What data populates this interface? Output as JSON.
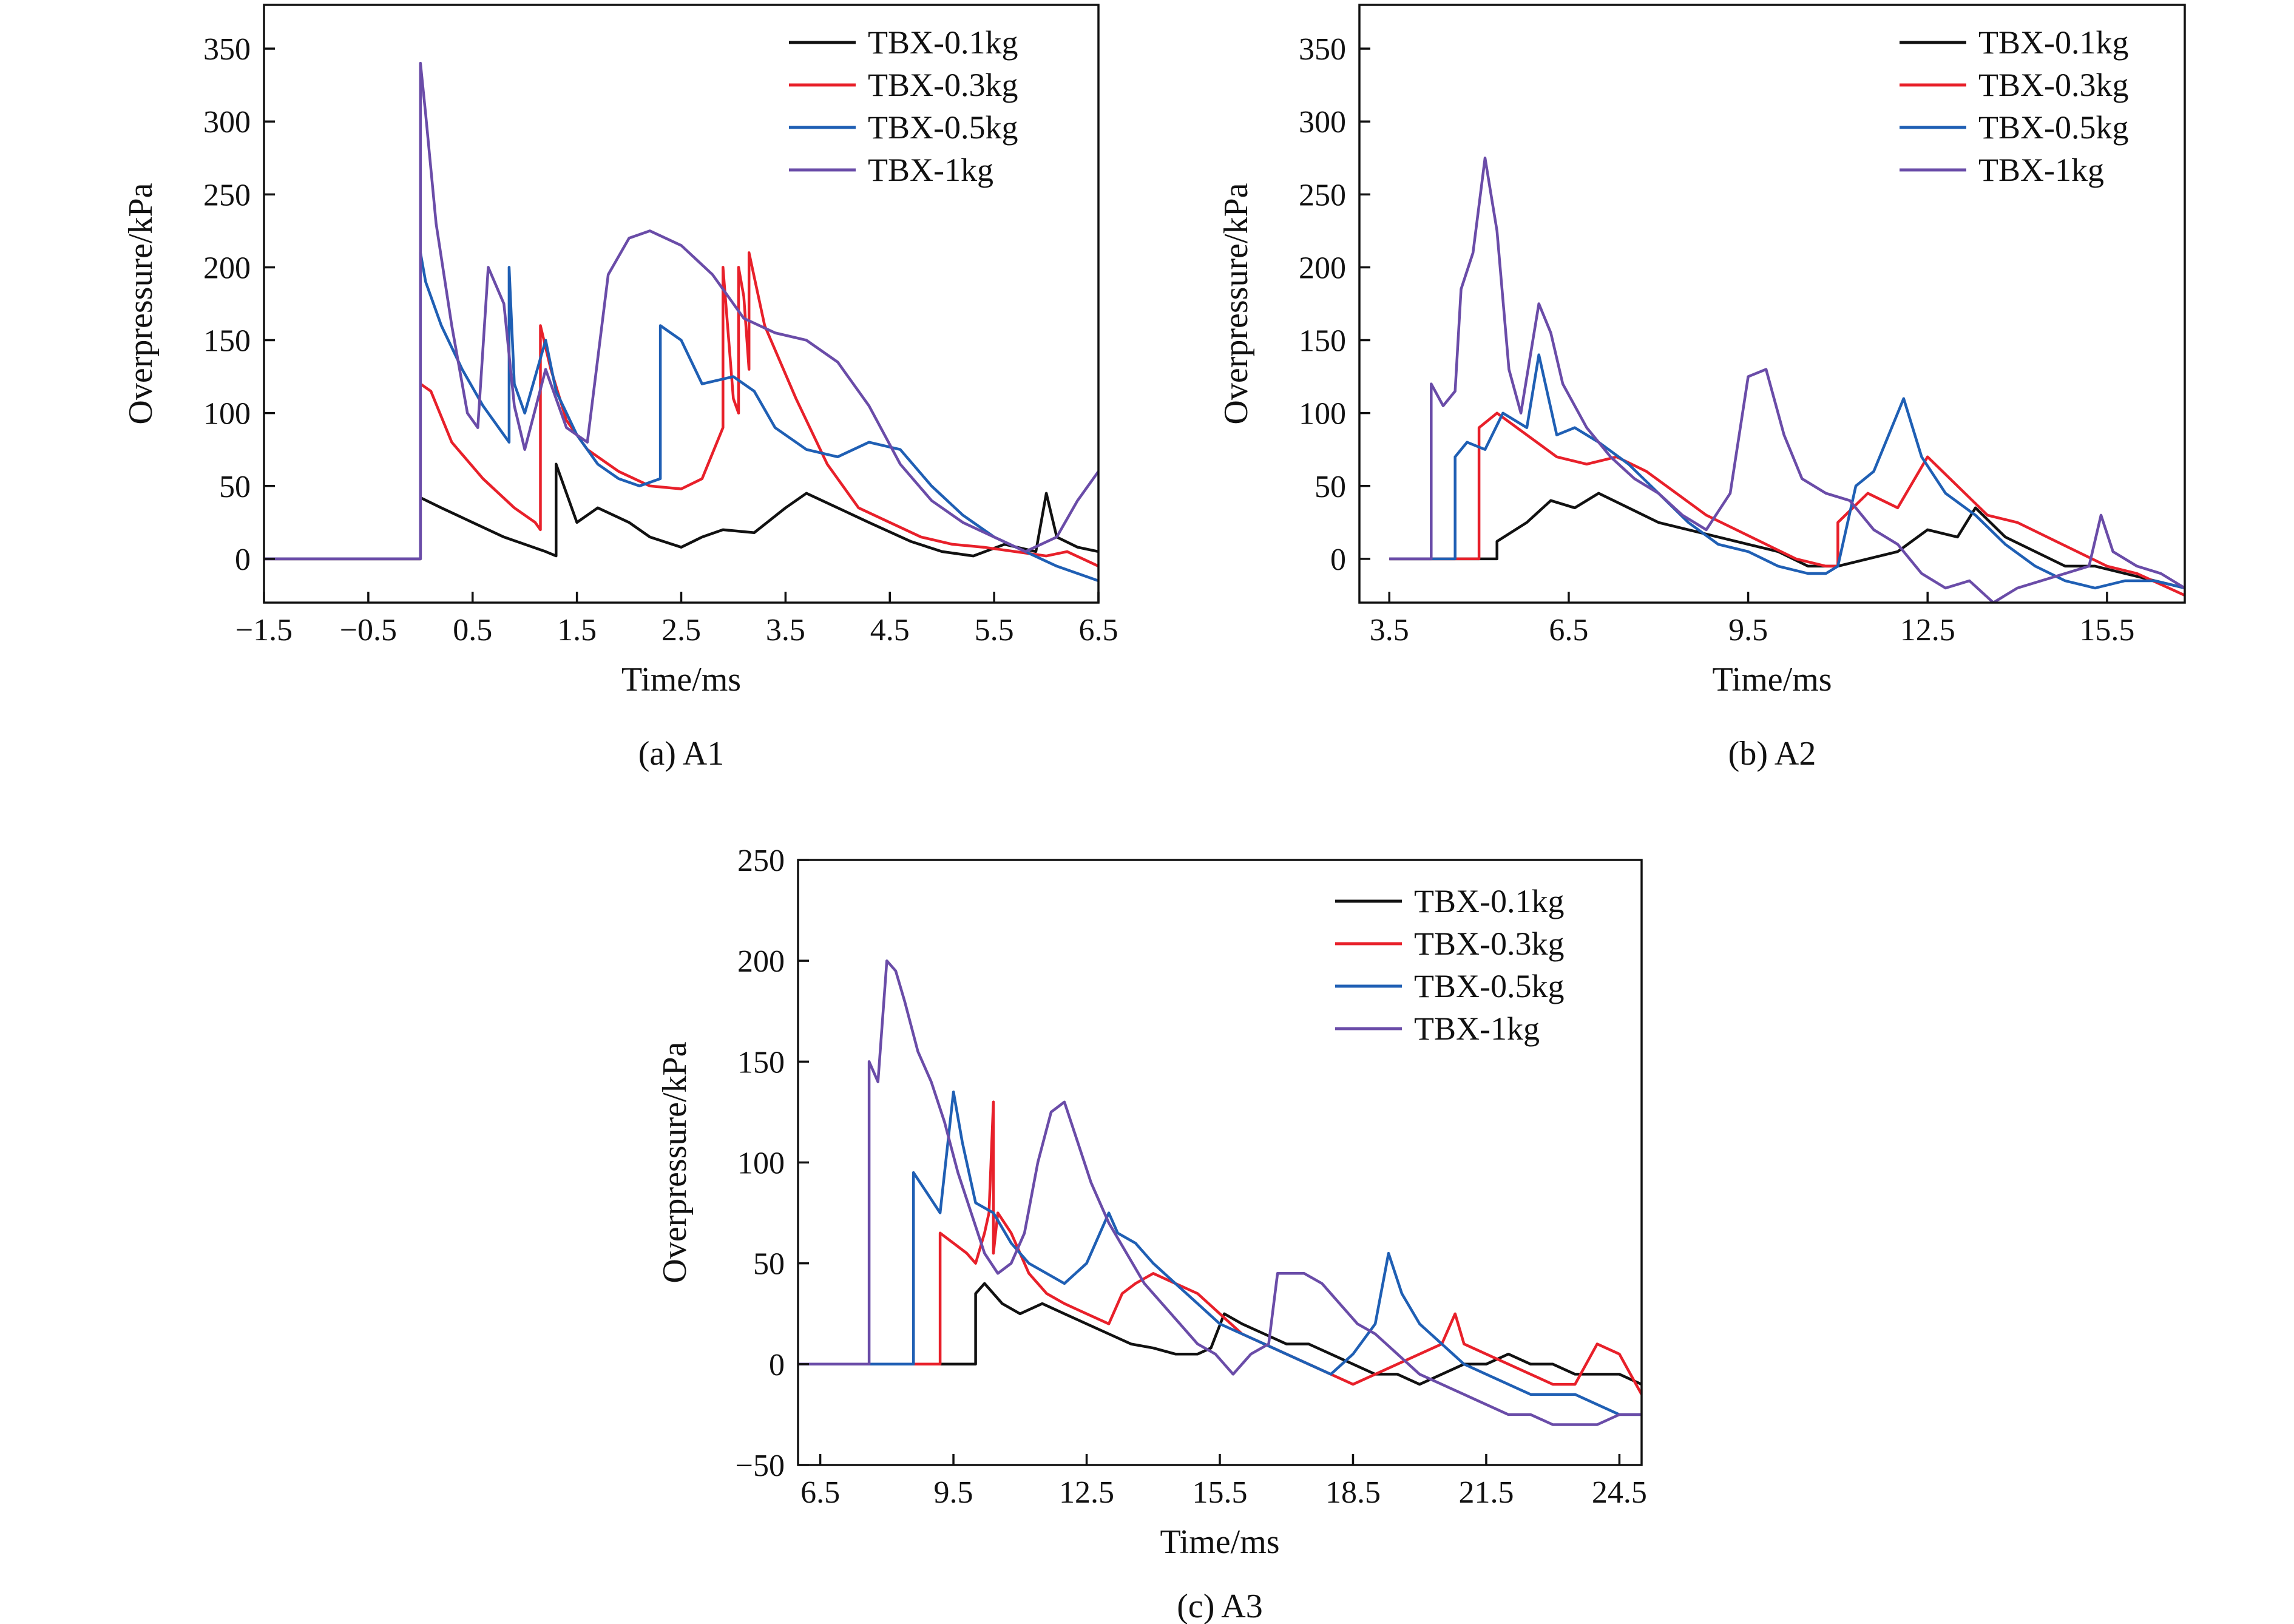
{
  "colors": {
    "TBX-0.1kg": "#111111",
    "TBX-0.3kg": "#e8202a",
    "TBX-0.5kg": "#1f5fb4",
    "TBX-1kg": "#6a4ca8"
  },
  "chart_data": [
    {
      "id": "a1",
      "type": "line",
      "caption": "(a) A1",
      "xlabel": "Time/ms",
      "ylabel": "Overpressure/kPa",
      "xlim": [
        -1.5,
        6.5
      ],
      "ylim": [
        -30,
        380
      ],
      "xticks": [
        -1.5,
        -0.5,
        0.5,
        1.5,
        2.5,
        3.5,
        4.5,
        5.5,
        6.5
      ],
      "xtick_labels": [
        "−1.5",
        "−0.5",
        "0.5",
        "1.5",
        "2.5",
        "3.5",
        "4.5",
        "5.5",
        "6.5"
      ],
      "yticks": [
        0,
        50,
        100,
        150,
        200,
        250,
        300,
        350
      ],
      "ytick_labels": [
        "0",
        "50",
        "100",
        "150",
        "200",
        "250",
        "300",
        "350"
      ],
      "legend_position": "top-right",
      "series": [
        {
          "name": "TBX-0.1kg",
          "x": [
            -1.5,
            -0.5,
            0.0,
            0.0,
            0.2,
            0.5,
            0.8,
            1.0,
            1.2,
            1.3,
            1.3,
            1.5,
            1.7,
            2.0,
            2.2,
            2.5,
            2.7,
            2.9,
            3.2,
            3.5,
            3.7,
            4.0,
            4.3,
            4.7,
            5.0,
            5.3,
            5.6,
            5.9,
            6.0,
            6.1,
            6.3,
            6.5
          ],
          "y": [
            0,
            0,
            0,
            42,
            35,
            25,
            15,
            10,
            5,
            2,
            65,
            25,
            35,
            25,
            15,
            8,
            15,
            20,
            18,
            35,
            45,
            35,
            25,
            12,
            5,
            2,
            10,
            5,
            45,
            15,
            8,
            5
          ]
        },
        {
          "name": "TBX-0.3kg",
          "x": [
            -1.5,
            -0.5,
            0.0,
            0.0,
            0.1,
            0.3,
            0.6,
            0.9,
            1.1,
            1.15,
            1.15,
            1.25,
            1.4,
            1.6,
            1.9,
            2.2,
            2.5,
            2.7,
            2.9,
            2.9,
            3.0,
            3.05,
            3.05,
            3.1,
            3.15,
            3.15,
            3.3,
            3.6,
            3.9,
            4.2,
            4.5,
            4.8,
            5.1,
            5.4,
            5.7,
            6.0,
            6.2,
            6.5
          ],
          "y": [
            0,
            0,
            0,
            120,
            115,
            80,
            55,
            35,
            25,
            20,
            160,
            130,
            95,
            75,
            60,
            50,
            48,
            55,
            90,
            200,
            110,
            100,
            200,
            180,
            130,
            210,
            160,
            110,
            65,
            35,
            25,
            15,
            10,
            8,
            5,
            2,
            5,
            -5
          ]
        },
        {
          "name": "TBX-0.5kg",
          "x": [
            -1.5,
            -0.5,
            0.0,
            0.0,
            0.05,
            0.2,
            0.4,
            0.6,
            0.8,
            0.85,
            0.85,
            0.9,
            1.0,
            1.2,
            1.3,
            1.5,
            1.7,
            1.9,
            2.1,
            2.3,
            2.3,
            2.5,
            2.7,
            3.0,
            3.2,
            3.4,
            3.7,
            4.0,
            4.3,
            4.6,
            4.9,
            5.2,
            5.5,
            5.8,
            6.1,
            6.5
          ],
          "y": [
            0,
            0,
            0,
            210,
            190,
            160,
            130,
            105,
            85,
            80,
            200,
            120,
            100,
            150,
            115,
            85,
            65,
            55,
            50,
            55,
            160,
            150,
            120,
            125,
            115,
            90,
            75,
            70,
            80,
            75,
            50,
            30,
            15,
            5,
            -5,
            -15
          ]
        },
        {
          "name": "TBX-1kg",
          "x": [
            -1.5,
            -0.5,
            0.0,
            0.0,
            0.05,
            0.15,
            0.3,
            0.45,
            0.55,
            0.65,
            0.8,
            0.9,
            1.0,
            1.2,
            1.4,
            1.6,
            1.8,
            2.0,
            2.2,
            2.5,
            2.8,
            3.1,
            3.4,
            3.7,
            4.0,
            4.3,
            4.6,
            4.9,
            5.2,
            5.5,
            5.8,
            6.1,
            6.3,
            6.5
          ],
          "y": [
            0,
            0,
            0,
            340,
            305,
            230,
            160,
            100,
            90,
            200,
            175,
            105,
            75,
            130,
            90,
            80,
            195,
            220,
            225,
            215,
            195,
            165,
            155,
            150,
            135,
            105,
            65,
            40,
            25,
            15,
            5,
            15,
            40,
            60
          ]
        }
      ]
    },
    {
      "id": "a2",
      "type": "line",
      "caption": "(b) A2",
      "xlabel": "Time/ms",
      "ylabel": "Overpressure/kPa",
      "xlim": [
        3.0,
        16.8
      ],
      "ylim": [
        -30,
        380
      ],
      "xticks": [
        3.5,
        6.5,
        9.5,
        12.5,
        15.5
      ],
      "xtick_labels": [
        "3.5",
        "6.5",
        "9.5",
        "12.5",
        "15.5"
      ],
      "yticks": [
        0,
        50,
        100,
        150,
        200,
        250,
        300,
        350
      ],
      "ytick_labels": [
        "0",
        "50",
        "100",
        "150",
        "200",
        "250",
        "300",
        "350"
      ],
      "legend_position": "top-right",
      "series": [
        {
          "name": "TBX-0.1kg",
          "x": [
            3.5,
            5.3,
            5.3,
            5.8,
            6.2,
            6.6,
            7.0,
            7.5,
            8.0,
            8.5,
            9.0,
            9.5,
            10.0,
            10.5,
            11.0,
            11.5,
            12.0,
            12.5,
            13.0,
            13.3,
            13.8,
            14.3,
            14.8,
            15.3,
            15.8,
            16.3,
            16.8
          ],
          "y": [
            0,
            0,
            12,
            25,
            40,
            35,
            45,
            35,
            25,
            20,
            15,
            10,
            5,
            -5,
            -5,
            0,
            5,
            20,
            15,
            35,
            15,
            5,
            -5,
            -5,
            -10,
            -15,
            -20
          ]
        },
        {
          "name": "TBX-0.3kg",
          "x": [
            3.5,
            5.0,
            5.0,
            5.3,
            5.8,
            6.3,
            6.8,
            7.3,
            7.8,
            8.3,
            8.8,
            9.3,
            9.8,
            10.3,
            10.8,
            11.0,
            11.0,
            11.5,
            12.0,
            12.5,
            13.0,
            13.5,
            14.0,
            14.5,
            15.0,
            15.5,
            16.0,
            16.8
          ],
          "y": [
            0,
            0,
            90,
            100,
            85,
            70,
            65,
            70,
            60,
            45,
            30,
            20,
            10,
            0,
            -5,
            -5,
            25,
            45,
            35,
            70,
            50,
            30,
            25,
            15,
            5,
            -5,
            -10,
            -25
          ]
        },
        {
          "name": "TBX-0.5kg",
          "x": [
            3.5,
            4.6,
            4.6,
            4.8,
            5.1,
            5.4,
            5.8,
            6.0,
            6.3,
            6.6,
            7.0,
            7.5,
            8.0,
            8.5,
            9.0,
            9.5,
            10.0,
            10.5,
            10.8,
            11.0,
            11.3,
            11.6,
            11.9,
            12.1,
            12.4,
            12.8,
            13.3,
            13.8,
            14.3,
            14.8,
            15.3,
            15.8,
            16.3,
            16.8
          ],
          "y": [
            0,
            0,
            70,
            80,
            75,
            100,
            90,
            140,
            85,
            90,
            80,
            65,
            45,
            25,
            10,
            5,
            -5,
            -10,
            -10,
            -5,
            50,
            60,
            90,
            110,
            70,
            45,
            30,
            10,
            -5,
            -15,
            -20,
            -15,
            -15,
            -20
          ]
        },
        {
          "name": "TBX-1kg",
          "x": [
            3.5,
            4.2,
            4.2,
            4.4,
            4.6,
            4.7,
            4.9,
            5.1,
            5.3,
            5.5,
            5.7,
            6.0,
            6.2,
            6.4,
            6.8,
            7.2,
            7.6,
            8.0,
            8.4,
            8.8,
            9.2,
            9.5,
            9.8,
            10.1,
            10.4,
            10.8,
            11.2,
            11.6,
            12.0,
            12.4,
            12.8,
            13.2,
            13.6,
            14.0,
            14.4,
            14.8,
            15.2,
            15.4,
            15.6,
            16.0,
            16.4,
            16.8
          ],
          "y": [
            0,
            0,
            120,
            105,
            115,
            185,
            210,
            275,
            225,
            130,
            100,
            175,
            155,
            120,
            90,
            70,
            55,
            45,
            30,
            20,
            45,
            125,
            130,
            85,
            55,
            45,
            40,
            20,
            10,
            -10,
            -20,
            -15,
            -30,
            -20,
            -15,
            -10,
            -5,
            30,
            5,
            -5,
            -10,
            -20
          ]
        }
      ]
    },
    {
      "id": "a3",
      "type": "line",
      "caption": "(c) A3",
      "xlabel": "Time/ms",
      "ylabel": "Overpressure/kPa",
      "xlim": [
        6.0,
        25.0
      ],
      "ylim": [
        -50,
        250
      ],
      "xticks": [
        6.5,
        9.5,
        12.5,
        15.5,
        18.5,
        21.5,
        24.5
      ],
      "xtick_labels": [
        "6.5",
        "9.5",
        "12.5",
        "15.5",
        "18.5",
        "21.5",
        "24.5"
      ],
      "yticks": [
        -50,
        0,
        50,
        100,
        150,
        200,
        250
      ],
      "ytick_labels": [
        "−50",
        "0",
        "50",
        "100",
        "150",
        "200",
        "250"
      ],
      "legend_position": "top-right",
      "series": [
        {
          "name": "TBX-0.1kg",
          "x": [
            6.0,
            10.0,
            10.0,
            10.2,
            10.6,
            11.0,
            11.5,
            12.0,
            12.5,
            13.0,
            13.5,
            14.0,
            14.5,
            15.0,
            15.3,
            15.6,
            16.0,
            16.5,
            17.0,
            17.5,
            18.0,
            18.5,
            19.0,
            19.5,
            20.0,
            20.5,
            21.0,
            21.5,
            22.0,
            22.5,
            23.0,
            23.5,
            24.0,
            24.5,
            25.0
          ],
          "y": [
            0,
            0,
            35,
            40,
            30,
            25,
            30,
            25,
            20,
            15,
            10,
            8,
            5,
            5,
            8,
            25,
            20,
            15,
            10,
            10,
            5,
            0,
            -5,
            -5,
            -10,
            -5,
            0,
            0,
            5,
            0,
            0,
            -5,
            -5,
            -5,
            -10
          ]
        },
        {
          "name": "TBX-0.3kg",
          "x": [
            6.0,
            9.2,
            9.2,
            9.5,
            9.8,
            10.0,
            10.2,
            10.3,
            10.4,
            10.4,
            10.5,
            10.8,
            11.2,
            11.6,
            12.0,
            12.5,
            13.0,
            13.3,
            13.6,
            14.0,
            14.5,
            15.0,
            15.5,
            16.0,
            16.5,
            17.0,
            17.5,
            18.0,
            18.5,
            19.0,
            19.5,
            20.0,
            20.5,
            20.8,
            21.0,
            21.5,
            22.0,
            22.5,
            23.0,
            23.5,
            24.0,
            24.5,
            25.0
          ],
          "y": [
            0,
            0,
            65,
            60,
            55,
            50,
            65,
            75,
            130,
            55,
            75,
            65,
            45,
            35,
            30,
            25,
            20,
            35,
            40,
            45,
            40,
            35,
            25,
            15,
            10,
            5,
            0,
            -5,
            -10,
            -5,
            0,
            5,
            10,
            25,
            10,
            5,
            0,
            -5,
            -10,
            -10,
            10,
            5,
            -15
          ]
        },
        {
          "name": "TBX-0.5kg",
          "x": [
            6.0,
            8.6,
            8.6,
            8.9,
            9.2,
            9.5,
            9.7,
            10.0,
            10.4,
            10.8,
            11.2,
            11.6,
            12.0,
            12.5,
            12.8,
            13.0,
            13.2,
            13.6,
            14.0,
            14.5,
            15.0,
            15.5,
            16.0,
            16.5,
            17.0,
            17.5,
            18.0,
            18.5,
            19.0,
            19.3,
            19.6,
            20.0,
            20.5,
            21.0,
            21.5,
            22.0,
            22.5,
            23.0,
            23.5,
            24.0,
            24.5,
            25.0
          ],
          "y": [
            0,
            0,
            95,
            85,
            75,
            135,
            110,
            80,
            75,
            60,
            50,
            45,
            40,
            50,
            65,
            75,
            65,
            60,
            50,
            40,
            30,
            20,
            15,
            10,
            5,
            0,
            -5,
            5,
            20,
            55,
            35,
            20,
            10,
            0,
            -5,
            -10,
            -15,
            -15,
            -15,
            -20,
            -25,
            -25
          ]
        },
        {
          "name": "TBX-1kg",
          "x": [
            6.0,
            7.6,
            7.6,
            7.8,
            8.0,
            8.2,
            8.4,
            8.7,
            9.0,
            9.3,
            9.6,
            9.9,
            10.2,
            10.5,
            10.8,
            11.1,
            11.4,
            11.7,
            12.0,
            12.3,
            12.6,
            13.0,
            13.4,
            13.8,
            14.2,
            14.6,
            15.0,
            15.4,
            15.8,
            16.2,
            16.6,
            16.8,
            17.0,
            17.4,
            17.8,
            18.2,
            18.6,
            19.0,
            19.5,
            20.0,
            20.5,
            21.0,
            21.5,
            22.0,
            22.5,
            23.0,
            23.5,
            24.0,
            24.5,
            25.0
          ],
          "y": [
            0,
            0,
            150,
            140,
            200,
            195,
            180,
            155,
            140,
            120,
            95,
            75,
            55,
            45,
            50,
            65,
            100,
            125,
            130,
            110,
            90,
            70,
            55,
            40,
            30,
            20,
            10,
            5,
            -5,
            5,
            10,
            45,
            45,
            45,
            40,
            30,
            20,
            15,
            5,
            -5,
            -10,
            -15,
            -20,
            -25,
            -25,
            -30,
            -30,
            -30,
            -25,
            -25
          ]
        }
      ]
    }
  ]
}
